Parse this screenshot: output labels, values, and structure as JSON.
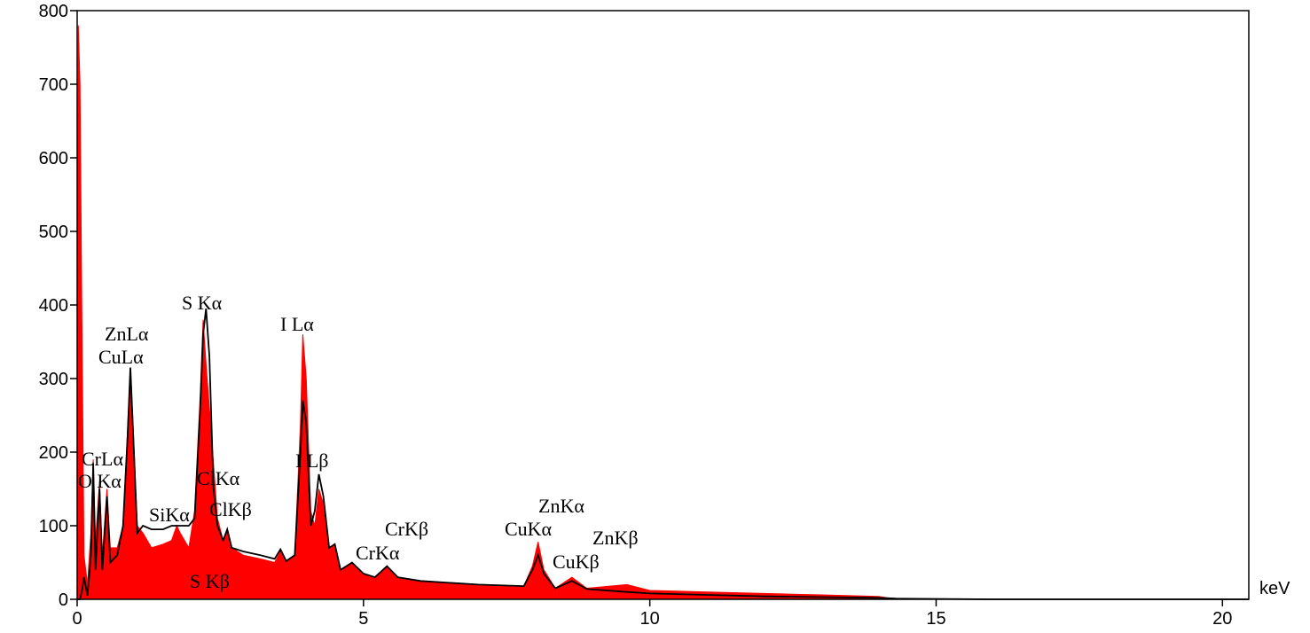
{
  "chart_data": {
    "type": "line",
    "x_label": "keV",
    "x": [
      0,
      0.02,
      0.05,
      0.08,
      0.12,
      0.18,
      0.24,
      0.28,
      0.32,
      0.39,
      0.44,
      0.52,
      0.58,
      0.7,
      0.8,
      0.88,
      0.93,
      0.98,
      1.05,
      1.15,
      1.3,
      1.5,
      1.65,
      1.74,
      1.8,
      1.95,
      2.05,
      2.15,
      2.2,
      2.25,
      2.31,
      2.38,
      2.45,
      2.55,
      2.62,
      2.7,
      2.9,
      3.2,
      3.45,
      3.55,
      3.65,
      3.8,
      3.9,
      3.94,
      4.0,
      4.08,
      4.15,
      4.22,
      4.3,
      4.4,
      4.5,
      4.6,
      4.8,
      5.0,
      5.2,
      5.41,
      5.6,
      6.0,
      7.0,
      7.8,
      7.95,
      8.05,
      8.15,
      8.35,
      8.64,
      8.9,
      9.6,
      10.0,
      11.0,
      12.0,
      13.0,
      14.0,
      14.3,
      16.0,
      20.46
    ],
    "series": [
      {
        "color": "#ff0000",
        "fill": true,
        "values": [
          0,
          780,
          700,
          400,
          60,
          20,
          90,
          190,
          80,
          160,
          60,
          150,
          70,
          70,
          100,
          230,
          315,
          230,
          100,
          90,
          70,
          75,
          80,
          100,
          90,
          70,
          120,
          280,
          380,
          320,
          260,
          185,
          110,
          80,
          95,
          70,
          60,
          55,
          50,
          65,
          50,
          60,
          240,
          360,
          300,
          120,
          100,
          150,
          130,
          70,
          75,
          40,
          50,
          35,
          30,
          45,
          30,
          25,
          20,
          18,
          45,
          78,
          40,
          15,
          30,
          15,
          20,
          12,
          10,
          8,
          6,
          4,
          0,
          0,
          0
        ]
      },
      {
        "color": "#000000",
        "fill": false,
        "values": [
          0,
          0,
          0,
          10,
          30,
          5,
          60,
          185,
          40,
          150,
          40,
          140,
          50,
          60,
          100,
          220,
          315,
          220,
          90,
          100,
          95,
          95,
          100,
          100,
          100,
          100,
          110,
          260,
          360,
          395,
          330,
          150,
          100,
          80,
          95,
          70,
          65,
          60,
          55,
          68,
          52,
          60,
          200,
          270,
          240,
          100,
          120,
          170,
          140,
          70,
          75,
          40,
          50,
          35,
          30,
          45,
          30,
          25,
          20,
          18,
          40,
          60,
          35,
          15,
          25,
          14,
          10,
          8,
          6,
          4,
          3,
          2,
          1,
          0,
          0
        ]
      }
    ],
    "annotations": [
      "S Kα",
      "ZnLα",
      "CuLα",
      "I Lα",
      "CrLα",
      "O Kα",
      "ClKα",
      "I Lβ",
      "SiKα",
      "ClKβ",
      "CrKβ",
      "CrKα",
      "ZnKα",
      "CuKα",
      "ZnKβ",
      "CuKβ",
      "S Kβ"
    ],
    "xlim": [
      0,
      20.46
    ],
    "ylim": [
      0,
      800
    ],
    "xticks": [
      0,
      5,
      10,
      15,
      20
    ],
    "yticks": [
      0,
      100,
      200,
      300,
      400,
      500,
      600,
      700,
      800
    ]
  }
}
